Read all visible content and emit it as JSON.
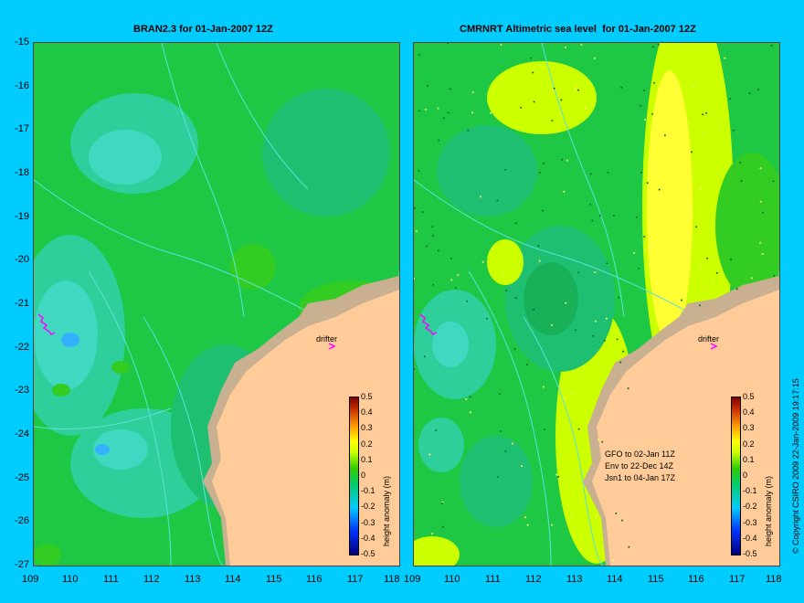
{
  "panels": [
    {
      "title": "BRAN2.3 for 01-Jan-2007 12Z"
    },
    {
      "title": "CMRNRT Altimetric sea level  for 01-Jan-2007 12Z"
    }
  ],
  "y_axis_labels": [
    "-15",
    "-16",
    "-17",
    "-18",
    "-19",
    "-20",
    "-21",
    "-22",
    "-23",
    "-24",
    "-25",
    "-26",
    "-27"
  ],
  "x_axis_labels": [
    "109",
    "110",
    "111",
    "112",
    "113",
    "114",
    "115",
    "116",
    "117",
    "118"
  ],
  "drifter_label": "drifter",
  "colorbar": {
    "title": "height anomaly (m)",
    "ticks": [
      "0.5",
      "0.4",
      "0.3",
      "0.2",
      "0.1",
      "0",
      "-0.1",
      "-0.2",
      "-0.3",
      "-0.4",
      "-0.5"
    ]
  },
  "satellite_notes": [
    "GFO to 02-Jan 11Z",
    "Env to 22-Dec 14Z",
    "Jsn1 to 04-Jan 17Z"
  ],
  "copyright": "© Copyright CSIRO 2009   22-Jan-2009 19:17:15",
  "colors": {
    "background": "#00ccff",
    "land": "#ffcc99",
    "coast": "#c8b090",
    "drifter": "#ff00ff"
  }
}
